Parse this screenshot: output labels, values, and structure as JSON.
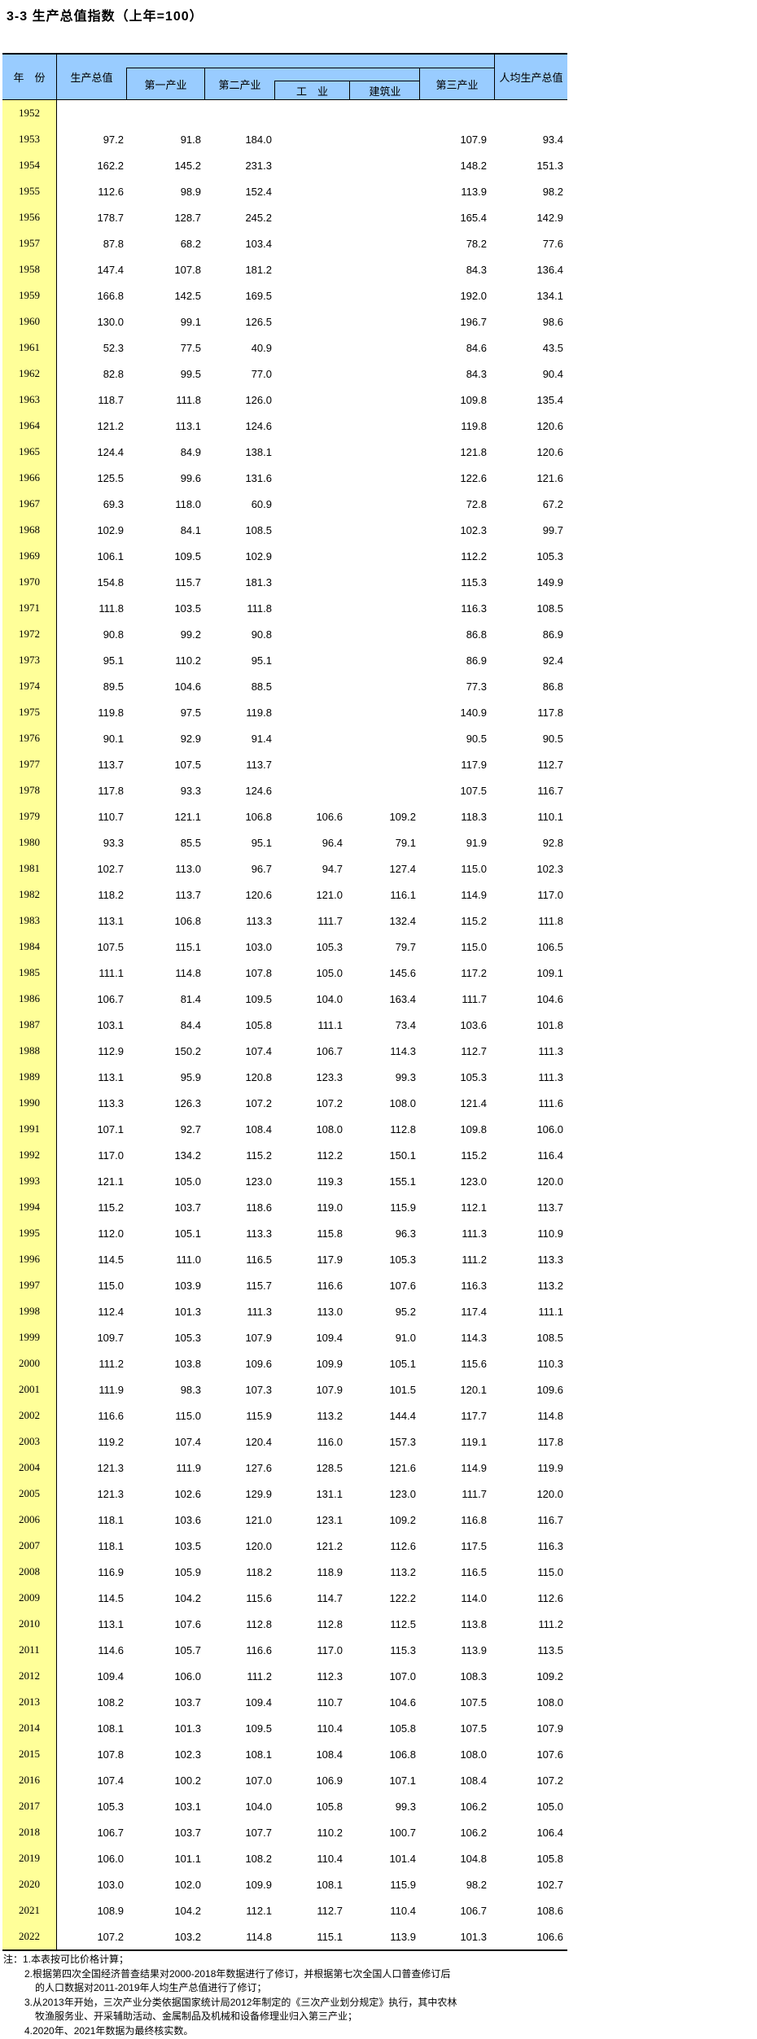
{
  "title": "3-3 生产总值指数（上年=100）",
  "colors": {
    "header_bg": "#99CCFF",
    "year_col_bg": "#FFFF99",
    "border": "#000000"
  },
  "table": {
    "header": {
      "year": "年　份",
      "gdp": "生产总值",
      "primary": "第一产业",
      "secondary": "第二产业",
      "industry": "工　业",
      "construction": "建筑业",
      "tertiary": "第三产业",
      "per_capita": "人均生产总值"
    },
    "rows": [
      [
        "1952",
        "",
        "",
        "",
        "",
        "",
        "",
        ""
      ],
      [
        "1953",
        "97.2",
        "91.8",
        "184.0",
        "",
        "",
        "107.9",
        "93.4"
      ],
      [
        "1954",
        "162.2",
        "145.2",
        "231.3",
        "",
        "",
        "148.2",
        "151.3"
      ],
      [
        "1955",
        "112.6",
        "98.9",
        "152.4",
        "",
        "",
        "113.9",
        "98.2"
      ],
      [
        "1956",
        "178.7",
        "128.7",
        "245.2",
        "",
        "",
        "165.4",
        "142.9"
      ],
      [
        "1957",
        "87.8",
        "68.2",
        "103.4",
        "",
        "",
        "78.2",
        "77.6"
      ],
      [
        "1958",
        "147.4",
        "107.8",
        "181.2",
        "",
        "",
        "84.3",
        "136.4"
      ],
      [
        "1959",
        "166.8",
        "142.5",
        "169.5",
        "",
        "",
        "192.0",
        "134.1"
      ],
      [
        "1960",
        "130.0",
        "99.1",
        "126.5",
        "",
        "",
        "196.7",
        "98.6"
      ],
      [
        "1961",
        "52.3",
        "77.5",
        "40.9",
        "",
        "",
        "84.6",
        "43.5"
      ],
      [
        "1962",
        "82.8",
        "99.5",
        "77.0",
        "",
        "",
        "84.3",
        "90.4"
      ],
      [
        "1963",
        "118.7",
        "111.8",
        "126.0",
        "",
        "",
        "109.8",
        "135.4"
      ],
      [
        "1964",
        "121.2",
        "113.1",
        "124.6",
        "",
        "",
        "119.8",
        "120.6"
      ],
      [
        "1965",
        "124.4",
        "84.9",
        "138.1",
        "",
        "",
        "121.8",
        "120.6"
      ],
      [
        "1966",
        "125.5",
        "99.6",
        "131.6",
        "",
        "",
        "122.6",
        "121.6"
      ],
      [
        "1967",
        "69.3",
        "118.0",
        "60.9",
        "",
        "",
        "72.8",
        "67.2"
      ],
      [
        "1968",
        "102.9",
        "84.1",
        "108.5",
        "",
        "",
        "102.3",
        "99.7"
      ],
      [
        "1969",
        "106.1",
        "109.5",
        "102.9",
        "",
        "",
        "112.2",
        "105.3"
      ],
      [
        "1970",
        "154.8",
        "115.7",
        "181.3",
        "",
        "",
        "115.3",
        "149.9"
      ],
      [
        "1971",
        "111.8",
        "103.5",
        "111.8",
        "",
        "",
        "116.3",
        "108.5"
      ],
      [
        "1972",
        "90.8",
        "99.2",
        "90.8",
        "",
        "",
        "86.8",
        "86.9"
      ],
      [
        "1973",
        "95.1",
        "110.2",
        "95.1",
        "",
        "",
        "86.9",
        "92.4"
      ],
      [
        "1974",
        "89.5",
        "104.6",
        "88.5",
        "",
        "",
        "77.3",
        "86.8"
      ],
      [
        "1975",
        "119.8",
        "97.5",
        "119.8",
        "",
        "",
        "140.9",
        "117.8"
      ],
      [
        "1976",
        "90.1",
        "92.9",
        "91.4",
        "",
        "",
        "90.5",
        "90.5"
      ],
      [
        "1977",
        "113.7",
        "107.5",
        "113.7",
        "",
        "",
        "117.9",
        "112.7"
      ],
      [
        "1978",
        "117.8",
        "93.3",
        "124.6",
        "",
        "",
        "107.5",
        "116.7"
      ],
      [
        "1979",
        "110.7",
        "121.1",
        "106.8",
        "106.6",
        "109.2",
        "118.3",
        "110.1"
      ],
      [
        "1980",
        "93.3",
        "85.5",
        "95.1",
        "96.4",
        "79.1",
        "91.9",
        "92.8"
      ],
      [
        "1981",
        "102.7",
        "113.0",
        "96.7",
        "94.7",
        "127.4",
        "115.0",
        "102.3"
      ],
      [
        "1982",
        "118.2",
        "113.7",
        "120.6",
        "121.0",
        "116.1",
        "114.9",
        "117.0"
      ],
      [
        "1983",
        "113.1",
        "106.8",
        "113.3",
        "111.7",
        "132.4",
        "115.2",
        "111.8"
      ],
      [
        "1984",
        "107.5",
        "115.1",
        "103.0",
        "105.3",
        "79.7",
        "115.0",
        "106.5"
      ],
      [
        "1985",
        "111.1",
        "114.8",
        "107.8",
        "105.0",
        "145.6",
        "117.2",
        "109.1"
      ],
      [
        "1986",
        "106.7",
        "81.4",
        "109.5",
        "104.0",
        "163.4",
        "111.7",
        "104.6"
      ],
      [
        "1987",
        "103.1",
        "84.4",
        "105.8",
        "111.1",
        "73.4",
        "103.6",
        "101.8"
      ],
      [
        "1988",
        "112.9",
        "150.2",
        "107.4",
        "106.7",
        "114.3",
        "112.7",
        "111.3"
      ],
      [
        "1989",
        "113.1",
        "95.9",
        "120.8",
        "123.3",
        "99.3",
        "105.3",
        "111.3"
      ],
      [
        "1990",
        "113.3",
        "126.3",
        "107.2",
        "107.2",
        "108.0",
        "121.4",
        "111.6"
      ],
      [
        "1991",
        "107.1",
        "92.7",
        "108.4",
        "108.0",
        "112.8",
        "109.8",
        "106.0"
      ],
      [
        "1992",
        "117.0",
        "134.2",
        "115.2",
        "112.2",
        "150.1",
        "115.2",
        "116.4"
      ],
      [
        "1993",
        "121.1",
        "105.0",
        "123.0",
        "119.3",
        "155.1",
        "123.0",
        "120.0"
      ],
      [
        "1994",
        "115.2",
        "103.7",
        "118.6",
        "119.0",
        "115.9",
        "112.1",
        "113.7"
      ],
      [
        "1995",
        "112.0",
        "105.1",
        "113.3",
        "115.8",
        "96.3",
        "111.3",
        "110.9"
      ],
      [
        "1996",
        "114.5",
        "111.0",
        "116.5",
        "117.9",
        "105.3",
        "111.2",
        "113.3"
      ],
      [
        "1997",
        "115.0",
        "103.9",
        "115.7",
        "116.6",
        "107.6",
        "116.3",
        "113.2"
      ],
      [
        "1998",
        "112.4",
        "101.3",
        "111.3",
        "113.0",
        "95.2",
        "117.4",
        "111.1"
      ],
      [
        "1999",
        "109.7",
        "105.3",
        "107.9",
        "109.4",
        "91.0",
        "114.3",
        "108.5"
      ],
      [
        "2000",
        "111.2",
        "103.8",
        "109.6",
        "109.9",
        "105.1",
        "115.6",
        "110.3"
      ],
      [
        "2001",
        "111.9",
        "98.3",
        "107.3",
        "107.9",
        "101.5",
        "120.1",
        "109.6"
      ],
      [
        "2002",
        "116.6",
        "115.0",
        "115.9",
        "113.2",
        "144.4",
        "117.7",
        "114.8"
      ],
      [
        "2003",
        "119.2",
        "107.4",
        "120.4",
        "116.0",
        "157.3",
        "119.1",
        "117.8"
      ],
      [
        "2004",
        "121.3",
        "111.9",
        "127.6",
        "128.5",
        "121.6",
        "114.9",
        "119.9"
      ],
      [
        "2005",
        "121.3",
        "102.6",
        "129.9",
        "131.1",
        "123.0",
        "111.7",
        "120.0"
      ],
      [
        "2006",
        "118.1",
        "103.6",
        "121.0",
        "123.1",
        "109.2",
        "116.8",
        "116.7"
      ],
      [
        "2007",
        "118.1",
        "103.5",
        "120.0",
        "121.2",
        "112.6",
        "117.5",
        "116.3"
      ],
      [
        "2008",
        "116.9",
        "105.9",
        "118.2",
        "118.9",
        "113.2",
        "116.5",
        "115.0"
      ],
      [
        "2009",
        "114.5",
        "104.2",
        "115.6",
        "114.7",
        "122.2",
        "114.0",
        "112.6"
      ],
      [
        "2010",
        "113.1",
        "107.6",
        "112.8",
        "112.8",
        "112.5",
        "113.8",
        "111.2"
      ],
      [
        "2011",
        "114.6",
        "105.7",
        "116.6",
        "117.0",
        "115.3",
        "113.9",
        "113.5"
      ],
      [
        "2012",
        "109.4",
        "106.0",
        "111.2",
        "112.3",
        "107.0",
        "108.3",
        "109.2"
      ],
      [
        "2013",
        "108.2",
        "103.7",
        "109.4",
        "110.7",
        "104.6",
        "107.5",
        "108.0"
      ],
      [
        "2014",
        "108.1",
        "101.3",
        "109.5",
        "110.4",
        "105.8",
        "107.5",
        "107.9"
      ],
      [
        "2015",
        "107.8",
        "102.3",
        "108.1",
        "108.4",
        "106.8",
        "108.0",
        "107.6"
      ],
      [
        "2016",
        "107.4",
        "100.2",
        "107.0",
        "106.9",
        "107.1",
        "108.4",
        "107.2"
      ],
      [
        "2017",
        "105.3",
        "103.1",
        "104.0",
        "105.8",
        "99.3",
        "106.2",
        "105.0"
      ],
      [
        "2018",
        "106.7",
        "103.7",
        "107.7",
        "110.2",
        "100.7",
        "106.2",
        "106.4"
      ],
      [
        "2019",
        "106.0",
        "101.1",
        "108.2",
        "110.4",
        "101.4",
        "104.8",
        "105.8"
      ],
      [
        "2020",
        "103.0",
        "102.0",
        "109.9",
        "108.1",
        "115.9",
        "98.2",
        "102.7"
      ],
      [
        "2021",
        "108.9",
        "104.2",
        "112.1",
        "112.7",
        "110.4",
        "106.7",
        "108.6"
      ],
      [
        "2022",
        "107.2",
        "103.2",
        "114.8",
        "115.1",
        "113.9",
        "101.3",
        "106.6"
      ]
    ]
  },
  "notes": [
    {
      "text": "注：1.本表按可比价格计算；",
      "indent": 0
    },
    {
      "text": "2.根据第四次全国经济普查结果对2000-2018年数据进行了修订，并根据第七次全国人口普查修订后",
      "indent": 1
    },
    {
      "text": "的人口数据对2011-2019年人均生产总值进行了修订；",
      "indent": 2
    },
    {
      "text": "3.从2013年开始，三次产业分类依据国家统计局2012年制定的《三次产业划分规定》执行，其中农林",
      "indent": 1
    },
    {
      "text": "牧渔服务业、开采辅助活动、金属制品及机械和设备修理业归入第三产业；",
      "indent": 2
    },
    {
      "text": "4.2020年、2021年数据为最终核实数。",
      "indent": 1
    }
  ]
}
